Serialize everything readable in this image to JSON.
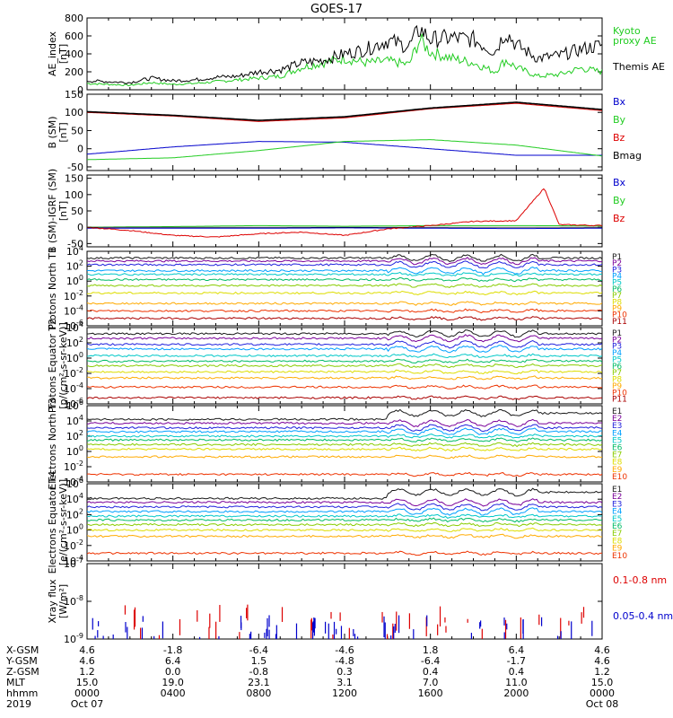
{
  "title": "GOES-17",
  "colors": {
    "black": "#000000",
    "green": "#22cc22",
    "red": "#dd0000",
    "blue": "#0000cc",
    "bands": [
      "#000000",
      "#1a1a1a",
      "#7a0099",
      "#2222dd",
      "#00a0ff",
      "#00c8c8",
      "#00bb66",
      "#88cc00",
      "#dddd00",
      "#ffaa00",
      "#ee3300",
      "#aa0000"
    ]
  },
  "chart_data": [
    {
      "type": "line",
      "id": "ae",
      "ylabel": "AE_index [nT]",
      "ylim": [
        0,
        800
      ],
      "yticks": [
        "800",
        "600",
        "400",
        "200",
        "0"
      ],
      "series": [
        {
          "name": "Kyoto proxy AE",
          "legend": "Kyoto\nproxy AE",
          "color": "#22cc22",
          "x": [
            0,
            1,
            2,
            3,
            4,
            5,
            6,
            7,
            8,
            9,
            10,
            11,
            12,
            13,
            14,
            15,
            15.5,
            16,
            17,
            18,
            19,
            19.5,
            20,
            21,
            22,
            23,
            24
          ],
          "values": [
            70,
            60,
            50,
            80,
            60,
            70,
            90,
            110,
            130,
            150,
            250,
            300,
            350,
            300,
            320,
            280,
            560,
            420,
            350,
            300,
            200,
            330,
            250,
            150,
            170,
            240,
            200
          ]
        },
        {
          "name": "Themis AE",
          "legend": "Themis AE",
          "color": "#000000",
          "x": [
            0,
            1,
            2,
            3,
            4,
            5,
            6,
            7,
            8,
            9,
            10,
            11,
            12,
            13,
            14,
            15,
            15.5,
            16,
            17,
            18,
            19,
            19.5,
            20,
            21,
            22,
            23,
            24
          ],
          "values": [
            100,
            90,
            80,
            130,
            100,
            110,
            140,
            150,
            200,
            220,
            300,
            330,
            400,
            450,
            550,
            480,
            680,
            560,
            580,
            560,
            420,
            650,
            500,
            350,
            380,
            450,
            500
          ]
        }
      ]
    },
    {
      "type": "line",
      "id": "bsm",
      "ylabel": "B (SM) [nT]",
      "ylim": [
        -60,
        150
      ],
      "yticks": [
        "150",
        "100",
        "50",
        "0",
        "-50"
      ],
      "series": [
        {
          "name": "Bx",
          "color": "#0000cc",
          "x": [
            0,
            4,
            8,
            12,
            16,
            20,
            24
          ],
          "values": [
            -15,
            5,
            20,
            18,
            0,
            -18,
            -18
          ]
        },
        {
          "name": "By",
          "color": "#22cc22",
          "x": [
            0,
            4,
            8,
            12,
            16,
            20,
            24
          ],
          "values": [
            -30,
            -25,
            -5,
            20,
            25,
            10,
            -20
          ]
        },
        {
          "name": "Bz",
          "color": "#dd0000",
          "x": [
            0,
            4,
            8,
            12,
            16,
            20,
            24
          ],
          "values": [
            100,
            90,
            75,
            85,
            110,
            125,
            105
          ]
        },
        {
          "name": "Bmag",
          "color": "#000000",
          "x": [
            0,
            4,
            8,
            12,
            16,
            20,
            24
          ],
          "values": [
            102,
            92,
            78,
            88,
            112,
            128,
            108
          ]
        }
      ]
    },
    {
      "type": "line",
      "id": "bigrf",
      "ylabel": "B (SM)-IGRF (SM) [nT]",
      "ylim": [
        -60,
        160
      ],
      "yticks": [
        "150",
        "100",
        "50",
        "0",
        "-50"
      ],
      "series": [
        {
          "name": "Bx",
          "color": "#0000cc",
          "x": [
            0,
            4,
            8,
            12,
            16,
            20,
            24
          ],
          "values": [
            -3,
            -3,
            -3,
            -2,
            -3,
            -4,
            -3
          ]
        },
        {
          "name": "By",
          "color": "#22cc22",
          "x": [
            0,
            4,
            8,
            12,
            16,
            20,
            24
          ],
          "values": [
            0,
            2,
            5,
            3,
            5,
            5,
            4
          ]
        },
        {
          "name": "Bz",
          "color": "#dd0000",
          "x": [
            0,
            2,
            4,
            6,
            8,
            10,
            12,
            14,
            16,
            18,
            20,
            21.3,
            22,
            24
          ],
          "values": [
            0,
            -10,
            -25,
            -30,
            -20,
            -15,
            -25,
            -5,
            5,
            18,
            20,
            120,
            8,
            5
          ]
        }
      ]
    },
    {
      "type": "line",
      "id": "pn",
      "log": true,
      "ylabel": "Protons North T1",
      "ylim": [
        -6,
        4
      ],
      "yticks": [
        "10^4",
        "10^2",
        "10^0",
        "10^-2",
        "10^-4",
        "10^-6"
      ],
      "bands": [
        "P1",
        "P2",
        "P3",
        "P4",
        "P5",
        "P6",
        "P7",
        "P8",
        "P9",
        "P10",
        "P11"
      ],
      "levels": [
        3.1,
        2.7,
        2.2,
        1.4,
        0.9,
        0.2,
        -0.6,
        -1.6,
        -3.0,
        -4.0,
        -5.0
      ]
    },
    {
      "type": "line",
      "id": "pe",
      "log": true,
      "ylabel": "Protons Equator T2 [p/(cm²-s-sr-keV)]",
      "ylim": [
        -6,
        4
      ],
      "yticks": [
        "10^4",
        "10^2",
        "10^0",
        "10^-2",
        "10^-4",
        "10^-6"
      ],
      "bands": [
        "P1",
        "P2",
        "P3",
        "P4",
        "P5",
        "P6",
        "P7",
        "P8",
        "P9",
        "P10",
        "P11"
      ],
      "levels": [
        3.2,
        2.6,
        1.8,
        1.2,
        0.3,
        -0.4,
        -1.0,
        -1.8,
        -2.6,
        -3.8,
        -5.2
      ]
    },
    {
      "type": "line",
      "id": "en",
      "log": true,
      "ylabel": "Electrons North T3",
      "ylim": [
        -4,
        6
      ],
      "yticks": [
        "10^6",
        "10^4",
        "10^2",
        "10^0",
        "10^-2",
        "10^-4"
      ],
      "bands": [
        "E1",
        "E2",
        "E3",
        "E4",
        "E5",
        "E6",
        "E7",
        "E8",
        "E9",
        "E10"
      ],
      "levels": [
        4.2,
        3.7,
        3.1,
        2.6,
        2.0,
        1.5,
        0.9,
        0.3,
        -0.7,
        -3.0
      ]
    },
    {
      "type": "line",
      "id": "ee",
      "log": true,
      "ylabel": "Electrons Equator T4 [e/(cm²-s-sr-keV)]",
      "ylim": [
        -4,
        6
      ],
      "yticks": [
        "10^6",
        "10^4",
        "10^2",
        "10^0",
        "10^-2",
        "10^-4"
      ],
      "bands": [
        "E1",
        "E2",
        "E3",
        "E4",
        "E5",
        "E6",
        "E7",
        "E8",
        "E9",
        "E10"
      ],
      "levels": [
        4.1,
        3.6,
        3.0,
        2.4,
        1.8,
        1.3,
        0.7,
        0.0,
        -0.8,
        -3.0
      ]
    },
    {
      "type": "scatter",
      "id": "xray",
      "log": true,
      "ylabel": "Xray flux [W/m²]",
      "ylim": [
        -9,
        -7
      ],
      "yticks": [
        "10^-7",
        "10^-8",
        "10^-9"
      ],
      "series": [
        {
          "name": "0.1-0.8 nm",
          "color": "#dd0000"
        },
        {
          "name": "0.05-0.4 nm",
          "color": "#0000cc"
        }
      ]
    }
  ],
  "bottom_axis": {
    "rows": [
      {
        "label": "X-GSM",
        "values": [
          "4.6",
          "-1.8",
          "-6.4",
          "-4.6",
          "1.8",
          "6.4",
          "4.6"
        ]
      },
      {
        "label": "Y-GSM",
        "values": [
          "4.6",
          "6.4",
          "1.5",
          "-4.8",
          "-6.4",
          "-1.7",
          "4.6"
        ]
      },
      {
        "label": "Z-GSM",
        "values": [
          "1.2",
          "0.0",
          "-0.8",
          "0.3",
          "0.4",
          "0.4",
          "1.2"
        ]
      },
      {
        "label": "MLT",
        "values": [
          "15.0",
          "19.0",
          "23.1",
          "3.1",
          "7.0",
          "11.0",
          "15.0"
        ]
      },
      {
        "label": "hhmm",
        "values": [
          "0000",
          "0400",
          "0800",
          "1200",
          "1600",
          "2000",
          "0000"
        ]
      },
      {
        "label": "2019",
        "values": [
          "Oct 07",
          "",
          "",
          "",
          "",
          "",
          "Oct 08"
        ]
      }
    ]
  }
}
